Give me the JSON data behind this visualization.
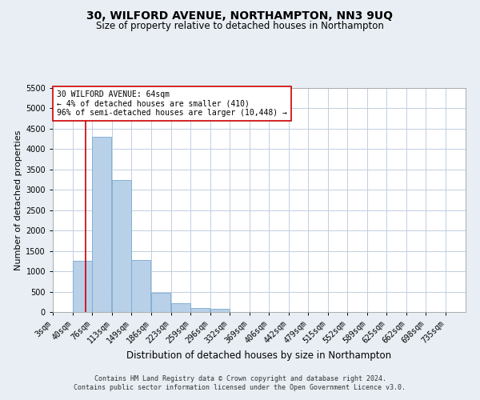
{
  "title": "30, WILFORD AVENUE, NORTHAMPTON, NN3 9UQ",
  "subtitle": "Size of property relative to detached houses in Northampton",
  "xlabel": "Distribution of detached houses by size in Northampton",
  "ylabel": "Number of detached properties",
  "footnote1": "Contains HM Land Registry data © Crown copyright and database right 2024.",
  "footnote2": "Contains public sector information licensed under the Open Government Licence v3.0.",
  "annotation_line1": "30 WILFORD AVENUE: 64sqm",
  "annotation_line2": "← 4% of detached houses are smaller (410)",
  "annotation_line3": "96% of semi-detached houses are larger (10,448) →",
  "bar_color": "#b8d0e8",
  "bar_edge_color": "#7aaad0",
  "ref_line_color": "#cc0000",
  "ref_line_x": 64,
  "categories": [
    "3sqm",
    "40sqm",
    "76sqm",
    "113sqm",
    "149sqm",
    "186sqm",
    "223sqm",
    "259sqm",
    "296sqm",
    "332sqm",
    "369sqm",
    "406sqm",
    "442sqm",
    "479sqm",
    "515sqm",
    "552sqm",
    "589sqm",
    "625sqm",
    "662sqm",
    "698sqm",
    "735sqm"
  ],
  "bin_edges": [
    3,
    40,
    76,
    113,
    149,
    186,
    223,
    259,
    296,
    332,
    369,
    406,
    442,
    479,
    515,
    552,
    589,
    625,
    662,
    698,
    735
  ],
  "values": [
    0,
    1250,
    4300,
    3250,
    1280,
    480,
    225,
    100,
    75,
    0,
    0,
    0,
    0,
    0,
    0,
    0,
    0,
    0,
    0,
    0
  ],
  "ylim": [
    0,
    5500
  ],
  "yticks": [
    0,
    500,
    1000,
    1500,
    2000,
    2500,
    3000,
    3500,
    4000,
    4500,
    5000,
    5500
  ],
  "background_color": "#e8eef4",
  "plot_bg_color": "#ffffff",
  "grid_color": "#c0d0e0",
  "title_fontsize": 10,
  "subtitle_fontsize": 8.5,
  "ylabel_fontsize": 8,
  "xlabel_fontsize": 8.5,
  "footnote_fontsize": 6,
  "annot_fontsize": 7,
  "tick_fontsize": 7
}
